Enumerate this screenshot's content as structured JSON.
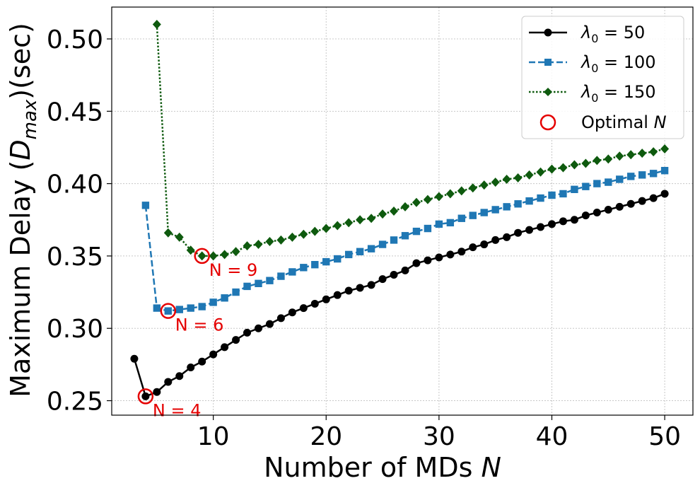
{
  "chart_data": {
    "type": "line",
    "xlabel": "Number of MDs N",
    "ylabel": "Maximum Delay (D_max)(sec)",
    "xlim": [
      1,
      52.5
    ],
    "ylim": [
      0.24,
      0.522
    ],
    "x_ticks": [
      10,
      20,
      30,
      40,
      50
    ],
    "y_ticks": [
      0.25,
      0.3,
      0.35,
      0.4,
      0.45,
      0.5
    ],
    "x_tick_labels": [
      "10",
      "20",
      "30",
      "40",
      "50"
    ],
    "y_tick_labels": [
      "0.25",
      "0.30",
      "0.35",
      "0.40",
      "0.45",
      "0.50"
    ],
    "grid": true,
    "legend_position": "top-right",
    "series": [
      {
        "name": "λ0 = 50",
        "color": "#000000",
        "marker": "circle",
        "line_style": "solid",
        "x": [
          3,
          4,
          5,
          6,
          7,
          8,
          9,
          10,
          11,
          12,
          13,
          14,
          15,
          16,
          17,
          18,
          19,
          20,
          21,
          22,
          23,
          24,
          25,
          26,
          27,
          28,
          29,
          30,
          31,
          32,
          33,
          34,
          35,
          36,
          37,
          38,
          39,
          40,
          41,
          42,
          43,
          44,
          45,
          46,
          47,
          48,
          49,
          50
        ],
        "y": [
          0.279,
          0.253,
          0.256,
          0.263,
          0.267,
          0.273,
          0.277,
          0.282,
          0.287,
          0.292,
          0.297,
          0.3,
          0.303,
          0.307,
          0.311,
          0.314,
          0.317,
          0.32,
          0.323,
          0.326,
          0.328,
          0.33,
          0.334,
          0.337,
          0.34,
          0.345,
          0.347,
          0.349,
          0.351,
          0.353,
          0.356,
          0.358,
          0.361,
          0.363,
          0.366,
          0.368,
          0.37,
          0.372,
          0.374,
          0.375,
          0.378,
          0.38,
          0.382,
          0.384,
          0.386,
          0.388,
          0.39,
          0.393
        ]
      },
      {
        "name": "λ0 = 100",
        "color": "#1f77b4",
        "marker": "square",
        "line_style": "dashed",
        "x": [
          4,
          5,
          6,
          7,
          8,
          9,
          10,
          11,
          12,
          13,
          14,
          15,
          16,
          17,
          18,
          19,
          20,
          21,
          22,
          23,
          24,
          25,
          26,
          27,
          28,
          29,
          30,
          31,
          32,
          33,
          34,
          35,
          36,
          37,
          38,
          39,
          40,
          41,
          42,
          43,
          44,
          45,
          46,
          47,
          48,
          49,
          50
        ],
        "y": [
          0.385,
          0.314,
          0.312,
          0.313,
          0.314,
          0.315,
          0.318,
          0.321,
          0.325,
          0.329,
          0.331,
          0.333,
          0.336,
          0.339,
          0.342,
          0.344,
          0.346,
          0.348,
          0.351,
          0.353,
          0.355,
          0.358,
          0.361,
          0.364,
          0.367,
          0.369,
          0.372,
          0.373,
          0.376,
          0.378,
          0.38,
          0.382,
          0.384,
          0.386,
          0.388,
          0.39,
          0.392,
          0.393,
          0.396,
          0.398,
          0.4,
          0.401,
          0.403,
          0.405,
          0.406,
          0.407,
          0.409
        ]
      },
      {
        "name": "λ0 = 150",
        "color": "#0e5a0e",
        "marker": "diamond",
        "line_style": "dotted",
        "x": [
          5,
          6,
          7,
          8,
          9,
          10,
          11,
          12,
          13,
          14,
          15,
          16,
          17,
          18,
          19,
          20,
          21,
          22,
          23,
          24,
          25,
          26,
          27,
          28,
          29,
          30,
          31,
          32,
          33,
          34,
          35,
          36,
          37,
          38,
          39,
          40,
          41,
          42,
          43,
          44,
          45,
          46,
          47,
          48,
          49,
          50
        ],
        "y": [
          0.51,
          0.366,
          0.363,
          0.354,
          0.35,
          0.35,
          0.351,
          0.353,
          0.357,
          0.358,
          0.36,
          0.361,
          0.363,
          0.365,
          0.367,
          0.369,
          0.371,
          0.373,
          0.375,
          0.376,
          0.379,
          0.381,
          0.384,
          0.387,
          0.389,
          0.391,
          0.393,
          0.395,
          0.397,
          0.399,
          0.401,
          0.403,
          0.404,
          0.406,
          0.408,
          0.41,
          0.411,
          0.413,
          0.414,
          0.416,
          0.417,
          0.419,
          0.42,
          0.421,
          0.422,
          0.424
        ]
      }
    ],
    "optimal_points": {
      "legend_label": "Optimal N",
      "color": "#e50000",
      "points": [
        {
          "x": 4,
          "y": 0.253,
          "label": "N = 4"
        },
        {
          "x": 6,
          "y": 0.312,
          "label": "N = 6"
        },
        {
          "x": 9,
          "y": 0.35,
          "label": "N = 9"
        }
      ]
    }
  }
}
